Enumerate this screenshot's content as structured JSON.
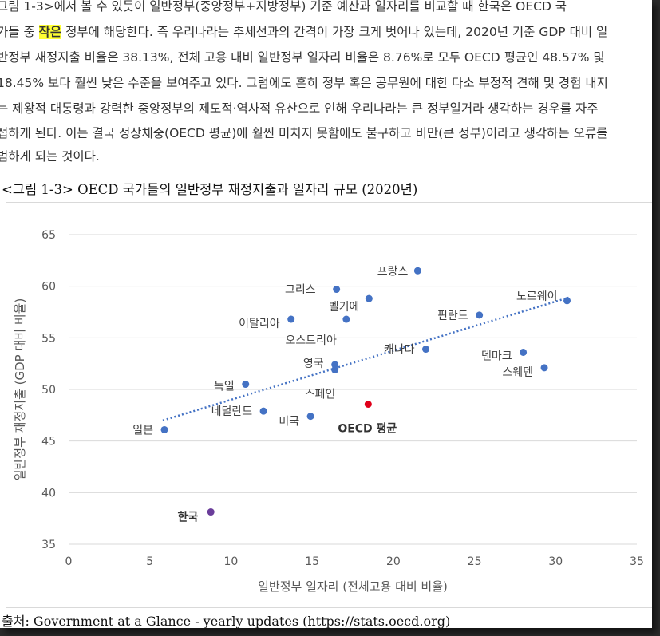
{
  "paragraph": {
    "line0": "그림 1-3>에서 볼 수 있듯이 일반정부(중앙정부+지방정부) 기준 예산과 일자리를 비교할 때 한국은 OECD 국",
    "line1_a": "가들 중 ",
    "line1_highlight": "작은",
    "line1_b": " 정부에 해당한다. 즉 우리나라는 추세선과의 간격이 가장 크게 벗어나 있는데, 2020년 기준 GDP 대비 일",
    "line2": "반정부 재정지출 비율은 38.13%, 전체 고용 대비 일반정부 일자리 비율은 8.76%로 모두 OECD 평균인 48.57% 및",
    "line3": "18.45% 보다 훨씬 낮은 수준을 보여주고 있다. 그럼에도 흔히 정부 혹은 공무원에 대한 다소 부정적 견해 및 경험 내지",
    "line4": "는 제왕적 대통령과 강력한 중앙정부의 제도적·역사적 유산으로 인해 우리나라는 큰 정부일거라 생각하는 경우를 자주",
    "line5": "접하게 된다. 이는 결국 정상체중(OECD 평균)에 훨씬 미치지 못함에도 불구하고 비만(큰 정부)이라고 생각하는 오류를",
    "line6": "범하게 되는 것이다."
  },
  "figure_caption": "<그림 1-3> OECD 국가들의 일반정부 재정지출과 일자리 규모 (2020년)",
  "source": "출처: Government at a Glance - yearly updates (https://stats.oecd.org)",
  "colors": {
    "point": "#4472c4",
    "oecd_point": "#e0001a",
    "korea_point": "#6a3d9a",
    "trendline": "#4472c4",
    "grid": "#d9d9d9",
    "axis_text": "#595959"
  },
  "chart_data": {
    "type": "scatter",
    "xlabel": "일반정부 일자리 (전체고용 대비 비율)",
    "ylabel": "일반정부 재정지출 (GDP 대비 비율)",
    "xlim": [
      0,
      35
    ],
    "ylim": [
      35,
      65
    ],
    "xticks": [
      0,
      5,
      10,
      15,
      20,
      25,
      30,
      35
    ],
    "yticks": [
      35,
      40,
      45,
      50,
      55,
      60,
      65
    ],
    "grid": "horizontal",
    "trendline": {
      "style": "dotted",
      "x": [
        5.8,
        30.8
      ],
      "y": [
        47.0,
        58.9
      ]
    },
    "points": [
      {
        "label": "프랑스",
        "x": 21.5,
        "y": 61.5
      },
      {
        "label": "그리스",
        "x": 16.5,
        "y": 59.7
      },
      {
        "label": "벨기에",
        "x": 18.5,
        "y": 58.8
      },
      {
        "label": "노르웨이",
        "x": 30.7,
        "y": 58.6
      },
      {
        "label": "이탈리아",
        "x": 13.7,
        "y": 56.8
      },
      {
        "label": "오스트리아",
        "x": 17.1,
        "y": 56.8
      },
      {
        "label": "핀란드",
        "x": 25.3,
        "y": 57.2
      },
      {
        "label": "캐나다",
        "x": 22.0,
        "y": 53.9
      },
      {
        "label": "덴마크",
        "x": 28.0,
        "y": 53.6
      },
      {
        "label": "스웨덴",
        "x": 29.3,
        "y": 52.1
      },
      {
        "label": "영국",
        "x": 16.4,
        "y": 52.4
      },
      {
        "label": "스페인",
        "x": 16.4,
        "y": 51.9
      },
      {
        "label": "독일",
        "x": 10.9,
        "y": 50.5
      },
      {
        "label": "네덜란드",
        "x": 12.0,
        "y": 47.9
      },
      {
        "label": "미국",
        "x": 14.9,
        "y": 47.4
      },
      {
        "label": "OECD 평균",
        "x": 18.45,
        "y": 48.57,
        "kind": "oecd"
      },
      {
        "label": "일본",
        "x": 5.9,
        "y": 46.1
      },
      {
        "label": "한국",
        "x": 8.76,
        "y": 38.13,
        "kind": "korea"
      }
    ]
  }
}
